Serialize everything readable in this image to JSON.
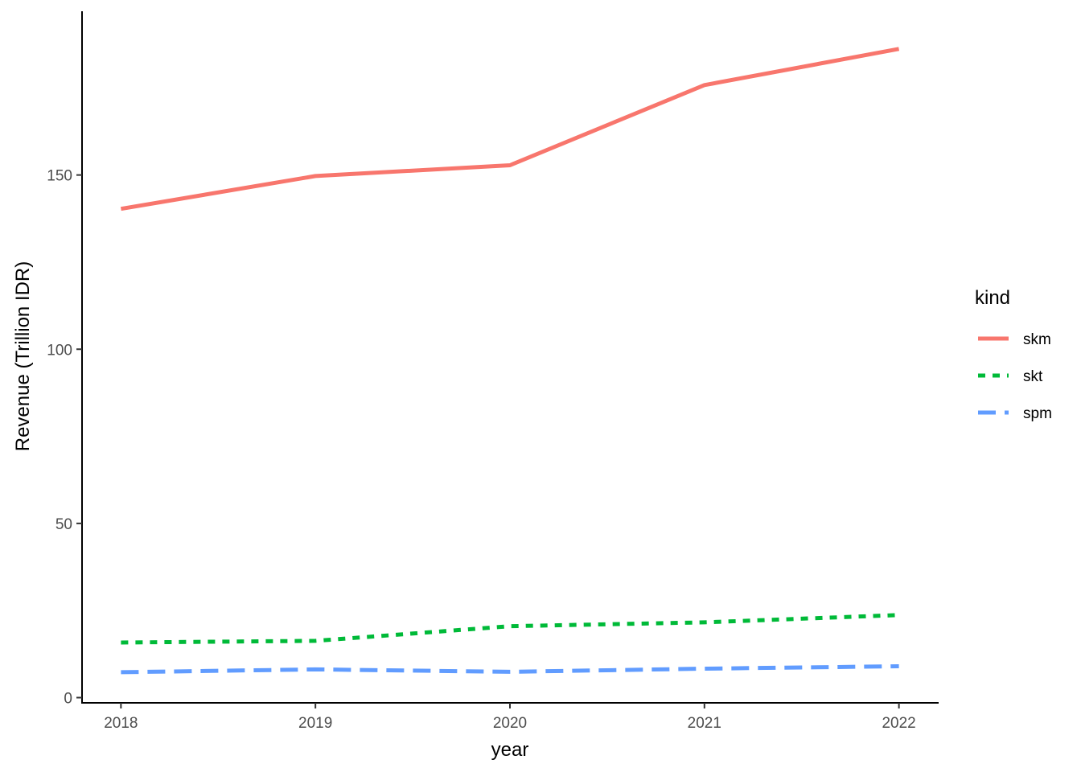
{
  "chart_data": {
    "type": "line",
    "xlabel": "year",
    "ylabel": "Revenue (Trillion IDR)",
    "x": [
      2018,
      2019,
      2020,
      2021,
      2022
    ],
    "x_ticks": [
      "2018",
      "2019",
      "2020",
      "2021",
      "2022"
    ],
    "y_ticks": [
      "0",
      "50",
      "100",
      "150"
    ],
    "xlim": [
      2017.8,
      2022.2
    ],
    "ylim": [
      -1.5,
      197
    ],
    "grid": false,
    "legend": {
      "title": "kind",
      "placement": "right"
    },
    "series": [
      {
        "name": "skm",
        "values": [
          140.3,
          149.7,
          152.8,
          175.8,
          186.2
        ],
        "color": "#F8766D",
        "dash": "solid"
      },
      {
        "name": "skt",
        "values": [
          15.8,
          16.3,
          20.5,
          21.6,
          23.7
        ],
        "color": "#00BA38",
        "dash": "dotted"
      },
      {
        "name": "spm",
        "values": [
          7.3,
          8.1,
          7.4,
          8.3,
          9.0
        ],
        "color": "#619CFF",
        "dash": "dashed"
      }
    ]
  }
}
